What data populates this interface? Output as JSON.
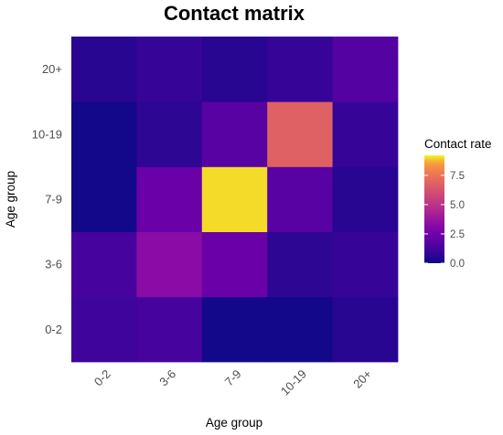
{
  "chart_data": {
    "type": "heatmap",
    "title": "Contact matrix",
    "xlabel": "Age group",
    "ylabel": "Age group",
    "x_categories": [
      "0-2",
      "3-6",
      "7-9",
      "10-19",
      "20+"
    ],
    "y_categories": [
      "0-2",
      "3-6",
      "7-9",
      "10-19",
      "20+"
    ],
    "values": [
      [
        1.1,
        1.3,
        0.1,
        0.1,
        0.6
      ],
      [
        1.3,
        3.3,
        2.3,
        0.7,
        0.9
      ],
      [
        0.1,
        2.3,
        9.0,
        1.8,
        0.6
      ],
      [
        0.1,
        0.7,
        1.8,
        6.8,
        0.9
      ],
      [
        0.6,
        0.9,
        0.6,
        0.9,
        1.7
      ]
    ],
    "legend": {
      "title": "Contact rate",
      "ticks": [
        0.0,
        2.5,
        5.0,
        7.5
      ],
      "tick_labels": [
        "0.0",
        "2.5",
        "5.0",
        "7.5"
      ],
      "range": [
        0,
        9.2
      ],
      "placement": "right"
    },
    "colormap": "plasma"
  }
}
